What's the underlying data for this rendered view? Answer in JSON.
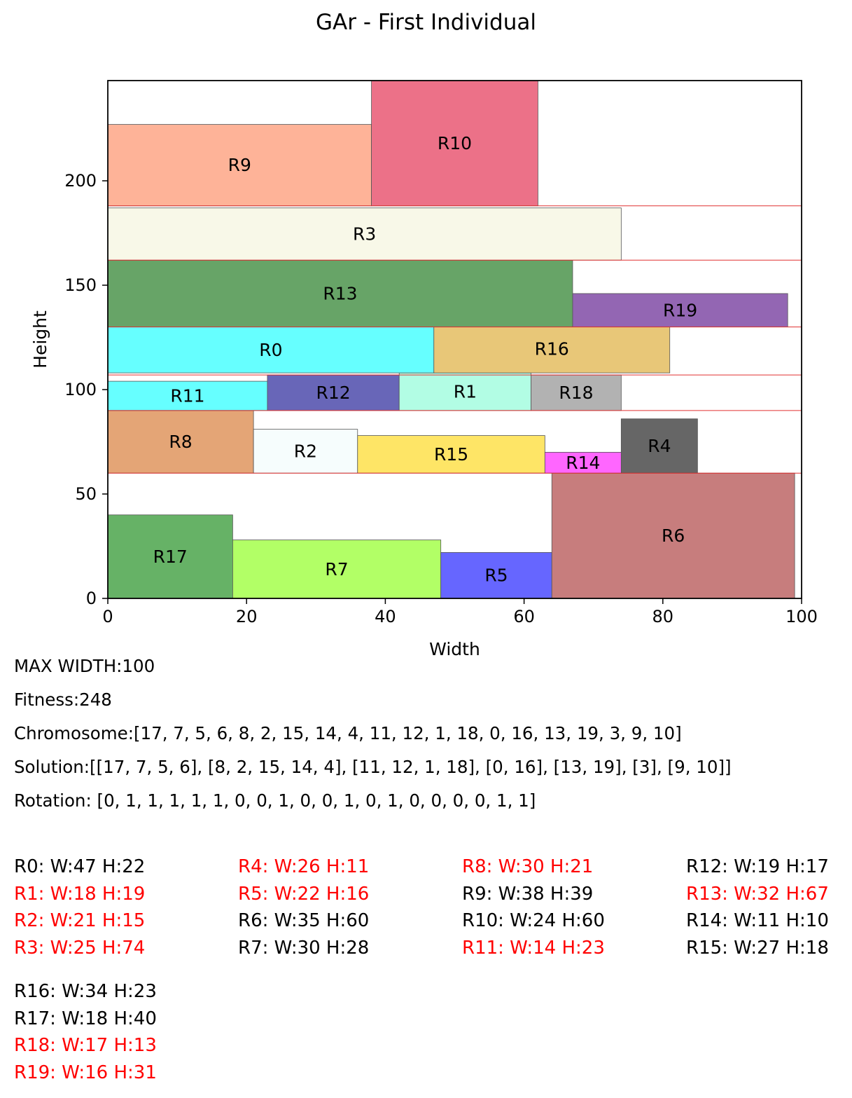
{
  "chart_data": {
    "type": "bar",
    "title": "GAr  - First Individual",
    "xlabel": "Width",
    "ylabel": "Height",
    "xlim": [
      0,
      100
    ],
    "ylim": [
      0,
      248
    ],
    "xticks": [
      "0",
      "20",
      "40",
      "60",
      "80",
      "100"
    ],
    "yticks": [
      "0",
      "50",
      "100",
      "150",
      "200"
    ],
    "grid": false,
    "shelf_lines": [
      60,
      90,
      107,
      130,
      162,
      188
    ],
    "rectangles": [
      {
        "label": "R17",
        "x": 0,
        "y": 0,
        "w": 18,
        "h": 40,
        "color": "#66b266"
      },
      {
        "label": "R7",
        "x": 18,
        "y": 0,
        "w": 30,
        "h": 28,
        "color": "#b2ff66"
      },
      {
        "label": "R5",
        "x": 48,
        "y": 0,
        "w": 16,
        "h": 22,
        "color": "#6666ff"
      },
      {
        "label": "R6",
        "x": 64,
        "y": 0,
        "w": 35,
        "h": 60,
        "color": "#c77d7d"
      },
      {
        "label": "R8",
        "x": 0,
        "y": 60,
        "w": 21,
        "h": 30,
        "color": "#e4a576"
      },
      {
        "label": "R2",
        "x": 21,
        "y": 60,
        "w": 15,
        "h": 21,
        "color": "#f6fdfd"
      },
      {
        "label": "R15",
        "x": 36,
        "y": 60,
        "w": 27,
        "h": 18,
        "color": "#fee566"
      },
      {
        "label": "R14",
        "x": 63,
        "y": 60,
        "w": 11,
        "h": 10,
        "color": "#ff66ff"
      },
      {
        "label": "R4",
        "x": 74,
        "y": 60,
        "w": 11,
        "h": 26,
        "color": "#666666"
      },
      {
        "label": "R11",
        "x": 0,
        "y": 90,
        "w": 23,
        "h": 14,
        "color": "#66ffff"
      },
      {
        "label": "R12",
        "x": 23,
        "y": 90,
        "w": 19,
        "h": 17,
        "color": "#6866b8"
      },
      {
        "label": "R1",
        "x": 42,
        "y": 90,
        "w": 19,
        "h": 18,
        "color": "#b2fde4"
      },
      {
        "label": "R18",
        "x": 61,
        "y": 90,
        "w": 13,
        "h": 17,
        "color": "#b2b2b2"
      },
      {
        "label": "R0",
        "x": 0,
        "y": 108,
        "w": 47,
        "h": 22,
        "color": "#66ffff"
      },
      {
        "label": "R16",
        "x": 47,
        "y": 108,
        "w": 34,
        "h": 23,
        "color": "#e8c778"
      },
      {
        "label": "R13",
        "x": 0,
        "y": 130,
        "w": 67,
        "h": 32,
        "color": "#67a467"
      },
      {
        "label": "R19",
        "x": 67,
        "y": 130,
        "w": 31,
        "h": 16,
        "color": "#9366b3"
      },
      {
        "label": "R3",
        "x": 0,
        "y": 162,
        "w": 74,
        "h": 25,
        "color": "#f8f8e8"
      },
      {
        "label": "R9",
        "x": 0,
        "y": 188,
        "w": 38,
        "h": 39,
        "color": "#feb398"
      },
      {
        "label": "R10",
        "x": 38,
        "y": 188,
        "w": 24,
        "h": 60,
        "color": "#ec7188"
      }
    ]
  },
  "info": {
    "max_width": "MAX WIDTH:100",
    "fitness": "Fitness:248",
    "chromosome": "Chromosome:[17, 7, 5, 6, 8, 2, 15, 14, 4, 11, 12, 1, 18, 0, 16, 13, 19, 3, 9, 10]",
    "solution": "Solution:[[17, 7, 5, 6], [8, 2, 15, 14, 4], [11, 12, 1, 18], [0, 16], [13, 19], [3], [9, 10]]",
    "rotation": "Rotation: [0, 1, 1, 1, 1, 1, 0, 0, 1, 0, 0, 1, 0, 1, 0, 0, 0, 0, 1, 1]"
  },
  "dimensions": [
    {
      "text": "R0: W:47 H:22",
      "rotated": false
    },
    {
      "text": "R1: W:18 H:19",
      "rotated": true
    },
    {
      "text": "R2: W:21 H:15",
      "rotated": true
    },
    {
      "text": "R3: W:25 H:74",
      "rotated": true
    },
    {
      "text": "R4: W:26 H:11",
      "rotated": true
    },
    {
      "text": "R5: W:22 H:16",
      "rotated": true
    },
    {
      "text": "R6: W:35 H:60",
      "rotated": false
    },
    {
      "text": "R7: W:30 H:28",
      "rotated": false
    },
    {
      "text": "R8: W:30 H:21",
      "rotated": true
    },
    {
      "text": "R9: W:38 H:39",
      "rotated": false
    },
    {
      "text": "R10: W:24 H:60",
      "rotated": false
    },
    {
      "text": "R11: W:14 H:23",
      "rotated": true
    },
    {
      "text": "R12: W:19 H:17",
      "rotated": false
    },
    {
      "text": "R13: W:32 H:67",
      "rotated": true
    },
    {
      "text": "R14: W:11 H:10",
      "rotated": false
    },
    {
      "text": "R15: W:27 H:18",
      "rotated": false
    },
    {
      "text": "R16: W:34 H:23",
      "rotated": false
    },
    {
      "text": "R17: W:18 H:40",
      "rotated": false
    },
    {
      "text": "R18: W:17 H:13",
      "rotated": true
    },
    {
      "text": "R19: W:16 H:31",
      "rotated": true
    }
  ]
}
